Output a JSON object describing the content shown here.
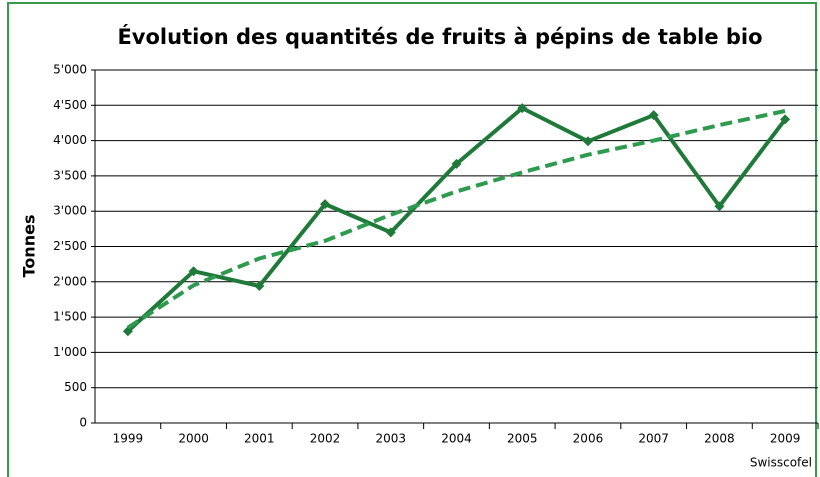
{
  "chart_data": {
    "type": "line",
    "title": "Évolution des quantités de fruits à pépins de table bio",
    "y_label": "Tonnes",
    "source": "Swisscofel",
    "categories": [
      "1999",
      "2000",
      "2001",
      "2002",
      "2003",
      "2004",
      "2005",
      "2006",
      "2007",
      "2008",
      "2009"
    ],
    "series": [
      {
        "color": "#1f7a3a",
        "style": "solid",
        "values": [
          1300,
          2150,
          1940,
          3100,
          2700,
          3670,
          4460,
          3990,
          4360,
          3070,
          4300
        ]
      },
      {
        "color": "#2e9a4e",
        "style": "dashed",
        "values": [
          1350,
          1950,
          2330,
          2580,
          2950,
          3280,
          3550,
          3800,
          4000,
          4220,
          4420
        ]
      }
    ],
    "ylim": [
      0,
      5000
    ],
    "yticks": [
      0,
      500,
      {
        "value": 1000,
        "label": "1'000"
      },
      {
        "value": 1500,
        "label": "1'500"
      },
      {
        "value": 2000,
        "label": "2'000"
      },
      {
        "value": 2500,
        "label": "2'500"
      },
      {
        "value": 3000,
        "label": "3'000"
      },
      {
        "value": 3500,
        "label": "3'500"
      },
      {
        "value": 4000,
        "label": "4'000"
      },
      {
        "value": 4500,
        "label": "4'500"
      },
      {
        "value": 5000,
        "label": "5'000"
      }
    ],
    "grid": true
  }
}
